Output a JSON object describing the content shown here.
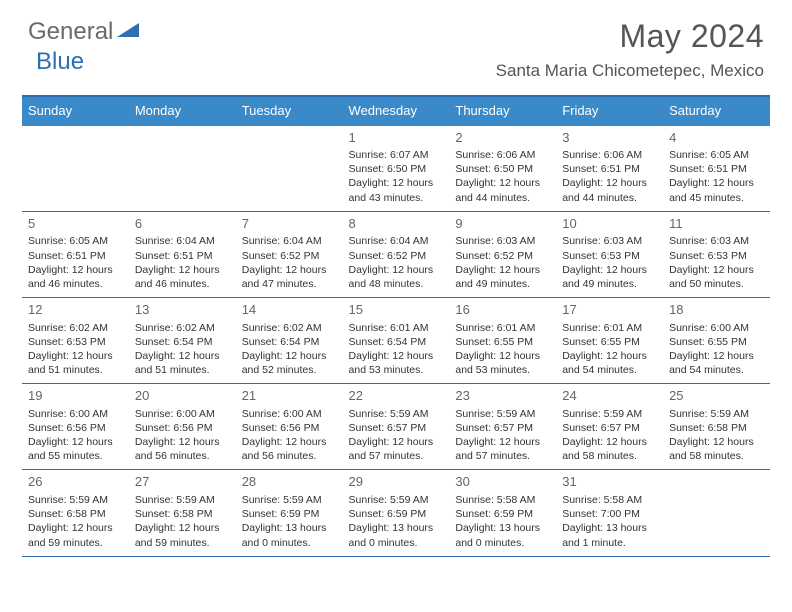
{
  "brand": {
    "part1": "General",
    "part2": "Blue",
    "color_gray": "#6a6a6a",
    "color_blue": "#2f6fb0"
  },
  "title": "May 2024",
  "location": "Santa Maria Chicometepec, Mexico",
  "header_bg": "#3a8ac9",
  "border_color": "#2f6fb0",
  "days": [
    "Sunday",
    "Monday",
    "Tuesday",
    "Wednesday",
    "Thursday",
    "Friday",
    "Saturday"
  ],
  "weeks": [
    [
      null,
      null,
      null,
      {
        "n": "1",
        "sr": "6:07 AM",
        "ss": "6:50 PM",
        "dl": "12 hours and 43 minutes."
      },
      {
        "n": "2",
        "sr": "6:06 AM",
        "ss": "6:50 PM",
        "dl": "12 hours and 44 minutes."
      },
      {
        "n": "3",
        "sr": "6:06 AM",
        "ss": "6:51 PM",
        "dl": "12 hours and 44 minutes."
      },
      {
        "n": "4",
        "sr": "6:05 AM",
        "ss": "6:51 PM",
        "dl": "12 hours and 45 minutes."
      }
    ],
    [
      {
        "n": "5",
        "sr": "6:05 AM",
        "ss": "6:51 PM",
        "dl": "12 hours and 46 minutes."
      },
      {
        "n": "6",
        "sr": "6:04 AM",
        "ss": "6:51 PM",
        "dl": "12 hours and 46 minutes."
      },
      {
        "n": "7",
        "sr": "6:04 AM",
        "ss": "6:52 PM",
        "dl": "12 hours and 47 minutes."
      },
      {
        "n": "8",
        "sr": "6:04 AM",
        "ss": "6:52 PM",
        "dl": "12 hours and 48 minutes."
      },
      {
        "n": "9",
        "sr": "6:03 AM",
        "ss": "6:52 PM",
        "dl": "12 hours and 49 minutes."
      },
      {
        "n": "10",
        "sr": "6:03 AM",
        "ss": "6:53 PM",
        "dl": "12 hours and 49 minutes."
      },
      {
        "n": "11",
        "sr": "6:03 AM",
        "ss": "6:53 PM",
        "dl": "12 hours and 50 minutes."
      }
    ],
    [
      {
        "n": "12",
        "sr": "6:02 AM",
        "ss": "6:53 PM",
        "dl": "12 hours and 51 minutes."
      },
      {
        "n": "13",
        "sr": "6:02 AM",
        "ss": "6:54 PM",
        "dl": "12 hours and 51 minutes."
      },
      {
        "n": "14",
        "sr": "6:02 AM",
        "ss": "6:54 PM",
        "dl": "12 hours and 52 minutes."
      },
      {
        "n": "15",
        "sr": "6:01 AM",
        "ss": "6:54 PM",
        "dl": "12 hours and 53 minutes."
      },
      {
        "n": "16",
        "sr": "6:01 AM",
        "ss": "6:55 PM",
        "dl": "12 hours and 53 minutes."
      },
      {
        "n": "17",
        "sr": "6:01 AM",
        "ss": "6:55 PM",
        "dl": "12 hours and 54 minutes."
      },
      {
        "n": "18",
        "sr": "6:00 AM",
        "ss": "6:55 PM",
        "dl": "12 hours and 54 minutes."
      }
    ],
    [
      {
        "n": "19",
        "sr": "6:00 AM",
        "ss": "6:56 PM",
        "dl": "12 hours and 55 minutes."
      },
      {
        "n": "20",
        "sr": "6:00 AM",
        "ss": "6:56 PM",
        "dl": "12 hours and 56 minutes."
      },
      {
        "n": "21",
        "sr": "6:00 AM",
        "ss": "6:56 PM",
        "dl": "12 hours and 56 minutes."
      },
      {
        "n": "22",
        "sr": "5:59 AM",
        "ss": "6:57 PM",
        "dl": "12 hours and 57 minutes."
      },
      {
        "n": "23",
        "sr": "5:59 AM",
        "ss": "6:57 PM",
        "dl": "12 hours and 57 minutes."
      },
      {
        "n": "24",
        "sr": "5:59 AM",
        "ss": "6:57 PM",
        "dl": "12 hours and 58 minutes."
      },
      {
        "n": "25",
        "sr": "5:59 AM",
        "ss": "6:58 PM",
        "dl": "12 hours and 58 minutes."
      }
    ],
    [
      {
        "n": "26",
        "sr": "5:59 AM",
        "ss": "6:58 PM",
        "dl": "12 hours and 59 minutes."
      },
      {
        "n": "27",
        "sr": "5:59 AM",
        "ss": "6:58 PM",
        "dl": "12 hours and 59 minutes."
      },
      {
        "n": "28",
        "sr": "5:59 AM",
        "ss": "6:59 PM",
        "dl": "13 hours and 0 minutes."
      },
      {
        "n": "29",
        "sr": "5:59 AM",
        "ss": "6:59 PM",
        "dl": "13 hours and 0 minutes."
      },
      {
        "n": "30",
        "sr": "5:58 AM",
        "ss": "6:59 PM",
        "dl": "13 hours and 0 minutes."
      },
      {
        "n": "31",
        "sr": "5:58 AM",
        "ss": "7:00 PM",
        "dl": "13 hours and 1 minute."
      },
      null
    ]
  ],
  "labels": {
    "sunrise": "Sunrise:",
    "sunset": "Sunset:",
    "daylight": "Daylight:"
  }
}
